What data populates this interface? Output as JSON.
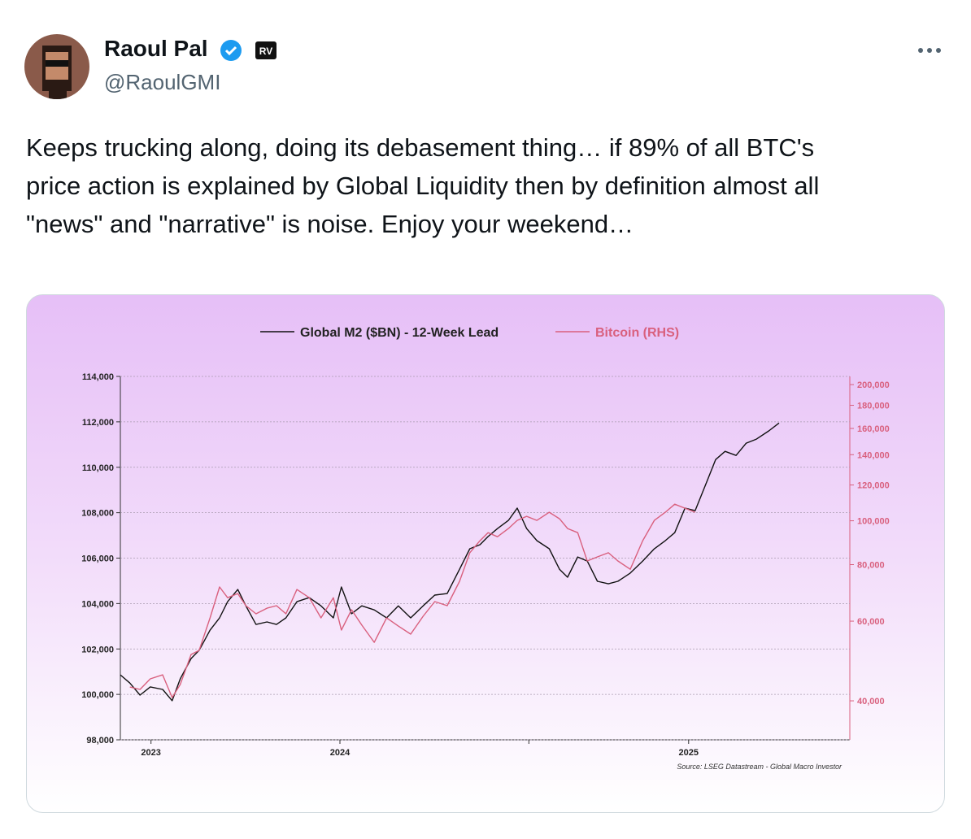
{
  "header": {
    "name": "Raoul Pal",
    "handle": "@RaoulGMI",
    "badge": "RV"
  },
  "tweet": {
    "text_lines": [
      "Keeps trucking along, doing its debasement thing… if 89% of all BTC's",
      "price action is explained by Global Liquidity then by definition almost all",
      "\"news\" and \"narrative\" is noise. Enjoy your weekend…"
    ]
  },
  "chart_data": {
    "type": "line",
    "source": "Source: LSEG Datastream - Global Macro Investor",
    "x": [
      0,
      1.3,
      2.7,
      4.1,
      5.8,
      7.1,
      8.2,
      9.7,
      10.8,
      12.3,
      13.6,
      14.7,
      16.1,
      17.2,
      18.6,
      20.1,
      21.4,
      22.7,
      24.2,
      25.9,
      27.5,
      29.2,
      30.3,
      31.7,
      33.1,
      34.8,
      36.5,
      38.1,
      39.8,
      41.5,
      43.1,
      44.8,
      46.5,
      47.9,
      49.3,
      50.4,
      51.7,
      53.2,
      54.4,
      55.7,
      57.1,
      58.8,
      60.2,
      61.3,
      62.7,
      64.0,
      65.4,
      66.9,
      68.2,
      69.9,
      71.6,
      73.2,
      74.7,
      76.0,
      77.4,
      78.8,
      80.5,
      81.6,
      82.9,
      84.4,
      85.8,
      87.2,
      88.9,
      90.3
    ],
    "xlim": [
      0,
      100
    ],
    "xticks": [
      {
        "value": 4.2,
        "label": "2023"
      },
      {
        "value": 30.1,
        "label": "2024"
      },
      {
        "value": 56.0,
        "label": null
      },
      {
        "value": 77.9,
        "label": "2025"
      }
    ],
    "ylim": [
      98000,
      114000
    ],
    "yticks": [
      {
        "value": 98000,
        "label": "98,000"
      },
      {
        "value": 100000,
        "label": "100,000"
      },
      {
        "value": 102000,
        "label": "102,000"
      },
      {
        "value": 104000,
        "label": "104,000"
      },
      {
        "value": 106000,
        "label": "106,000"
      },
      {
        "value": 108000,
        "label": "108,000"
      },
      {
        "value": 110000,
        "label": "110,000"
      },
      {
        "value": 112000,
        "label": "112,000"
      },
      {
        "value": 114000,
        "label": "114,000"
      }
    ],
    "y2lim": [
      32800,
      208500
    ],
    "y2scale": "log",
    "y2ticks": [
      {
        "value": 40000,
        "label": "40,000"
      },
      {
        "value": 60000,
        "label": "60,000"
      },
      {
        "value": 80000,
        "label": "80,000"
      },
      {
        "value": 100000,
        "label": "100,000"
      },
      {
        "value": 120000,
        "label": "120,000"
      },
      {
        "value": 140000,
        "label": "140,000"
      },
      {
        "value": 160000,
        "label": "160,000"
      },
      {
        "value": 180000,
        "label": "180,000"
      },
      {
        "value": 200000,
        "label": "200,000"
      }
    ],
    "grid": true,
    "legend": "top",
    "series": [
      {
        "name": "Global M2 ($BN) - 12-Week Lead",
        "color": "#111111",
        "axis": "y",
        "values": [
          100860,
          100500,
          99970,
          100330,
          100220,
          99720,
          100680,
          101580,
          101940,
          102830,
          103370,
          104080,
          104620,
          103900,
          103080,
          103190,
          103080,
          103370,
          104080,
          104260,
          103900,
          103370,
          104730,
          103550,
          103900,
          103720,
          103370,
          103900,
          103370,
          103900,
          104370,
          104440,
          105510,
          106410,
          106590,
          106950,
          107300,
          107660,
          108200,
          107300,
          106770,
          106410,
          105510,
          105160,
          106050,
          105870,
          104980,
          104870,
          104980,
          105340,
          105870,
          106410,
          106770,
          107120,
          108200,
          108090,
          109450,
          110340,
          110700,
          110520,
          111060,
          111240,
          111600,
          111950
        ]
      },
      {
        "name": "Bitcoin (RHS)",
        "color": "#d9607e",
        "axis": "y2",
        "values": [
          null,
          42900,
          42390,
          44730,
          45660,
          40670,
          43450,
          50640,
          51700,
          61000,
          71400,
          67600,
          69050,
          64910,
          62280,
          64100,
          64910,
          62280,
          70500,
          67600,
          61000,
          67600,
          57340,
          63580,
          58800,
          53870,
          61000,
          58520,
          56160,
          61510,
          66270,
          64910,
          73500,
          84970,
          90360,
          94150,
          92220,
          96140,
          100200,
          102300,
          100200,
          104450,
          101040,
          96140,
          94150,
          81500,
          83200,
          84970,
          81500,
          78150,
          90360,
          100200,
          104450,
          108800,
          106620,
          104450,
          null,
          null,
          null,
          null,
          null,
          null,
          null,
          null
        ]
      }
    ]
  }
}
